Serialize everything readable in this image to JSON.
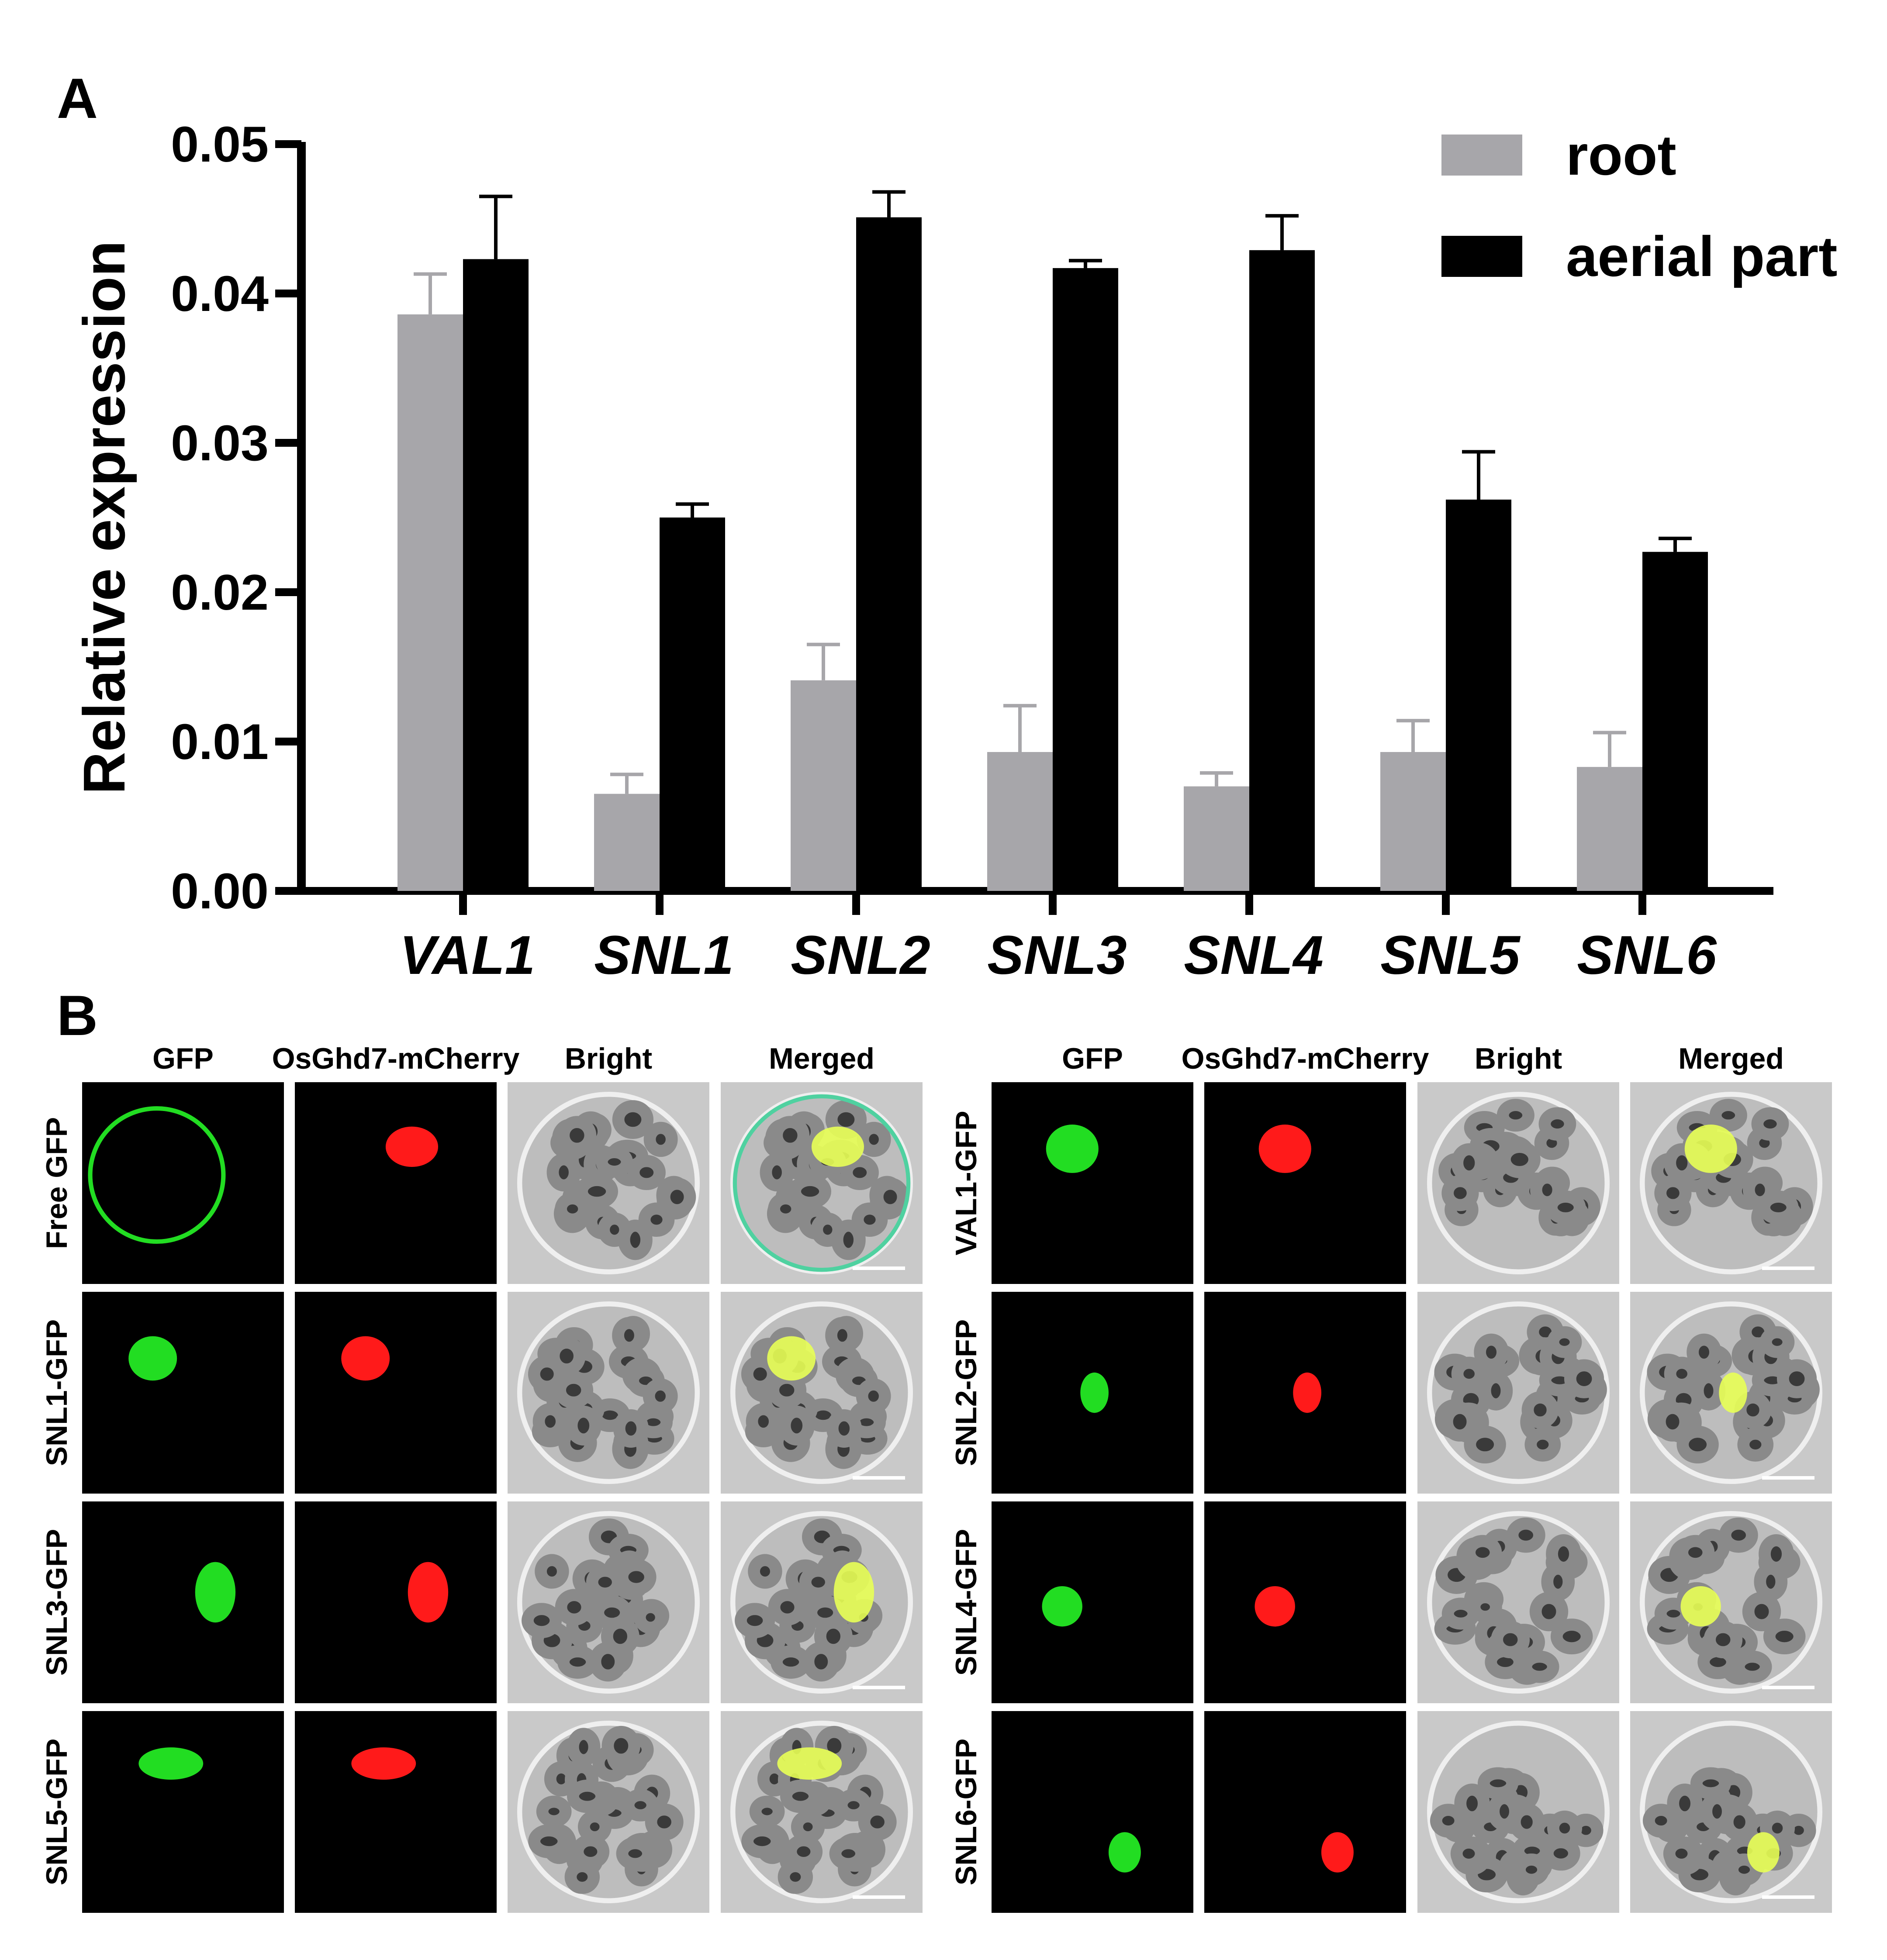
{
  "panel_a_label": "A",
  "panel_b_label": "B",
  "chart_data": {
    "type": "bar",
    "title": "",
    "xlabel": "",
    "ylabel": "Relative expression",
    "ylim": [
      0,
      0.05
    ],
    "yticks": [
      "0.00",
      "0.01",
      "0.02",
      "0.03",
      "0.04",
      "0.05"
    ],
    "categories": [
      "VAL1",
      "SNL1",
      "SNL2",
      "SNL3",
      "SNL4",
      "SNL5",
      "SNL6"
    ],
    "legend_position": "top-right",
    "grid": false,
    "series": [
      {
        "name": "root",
        "color": "#a7a6aa",
        "values": [
          0.0386,
          0.0065,
          0.0141,
          0.0093,
          0.007,
          0.0093,
          0.0083
        ],
        "errors": [
          0.0027,
          0.0013,
          0.0024,
          0.0031,
          0.0009,
          0.0021,
          0.0023
        ]
      },
      {
        "name": "aerial part",
        "color": "#000000",
        "values": [
          0.0423,
          0.025,
          0.0451,
          0.0417,
          0.0429,
          0.0262,
          0.0227
        ],
        "errors": [
          0.0042,
          0.0009,
          0.0017,
          0.0005,
          0.0023,
          0.0032,
          0.0009
        ]
      }
    ]
  },
  "microscopy": {
    "column_headers": [
      "GFP",
      "OsGhd7-mCherry",
      "Bright",
      "Merged"
    ],
    "left_rows": [
      "Free GFP",
      "SNL1-GFP",
      "SNL3-GFP",
      "SNL5-GFP"
    ],
    "right_rows": [
      "VAL1-GFP",
      "SNL2-GFP",
      "SNL4-GFP",
      "SNL6-GFP"
    ],
    "colors": {
      "gfp": "#22dd22",
      "mcherry": "#ff1a1a",
      "merge": "#e8ff55",
      "background": "#000000",
      "bright": "#c9c9c9"
    }
  }
}
